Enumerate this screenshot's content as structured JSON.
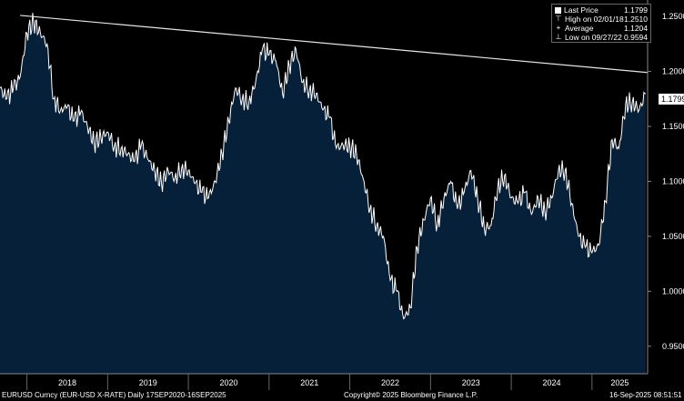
{
  "chart_data": {
    "type": "area",
    "instrument": "EUR-USD X-RATE",
    "footer_left": "EURUSD Curncy (EUR-USD X-RATE)  Daily 17SEP2020-16SEP2025",
    "footer_center": "Copyright© 2025 Bloomberg Finance L.P.",
    "footer_right": "16-Sep-2025 08:51:51",
    "ylim": [
      0.925,
      1.265
    ],
    "y_ticks": [
      "1.2500",
      "1.2000",
      "1.1500",
      "1.1000",
      "1.0500",
      "1.0000",
      "0.9500"
    ],
    "x_labels": [
      "2018",
      "2019",
      "2020",
      "2021",
      "2022",
      "2023",
      "2024",
      "2025"
    ],
    "x": [
      "2017-09",
      "2017-10",
      "2017-11",
      "2017-12",
      "2018-01",
      "2018-02",
      "2018-03",
      "2018-04",
      "2018-05",
      "2018-06",
      "2018-07",
      "2018-08",
      "2018-09",
      "2018-10",
      "2018-11",
      "2018-12",
      "2019-01",
      "2019-02",
      "2019-03",
      "2019-04",
      "2019-05",
      "2019-06",
      "2019-07",
      "2019-08",
      "2019-09",
      "2019-10",
      "2019-11",
      "2019-12",
      "2020-01",
      "2020-02",
      "2020-03",
      "2020-04",
      "2020-05",
      "2020-06",
      "2020-07",
      "2020-08",
      "2020-09",
      "2020-10",
      "2020-11",
      "2020-12",
      "2021-01",
      "2021-02",
      "2021-03",
      "2021-04",
      "2021-05",
      "2021-06",
      "2021-07",
      "2021-08",
      "2021-09",
      "2021-10",
      "2021-11",
      "2021-12",
      "2022-01",
      "2022-02",
      "2022-03",
      "2022-04",
      "2022-05",
      "2022-06",
      "2022-07",
      "2022-08",
      "2022-09",
      "2022-10",
      "2022-11",
      "2022-12",
      "2023-01",
      "2023-02",
      "2023-03",
      "2023-04",
      "2023-05",
      "2023-06",
      "2023-07",
      "2023-08",
      "2023-09",
      "2023-10",
      "2023-11",
      "2023-12",
      "2024-01",
      "2024-02",
      "2024-03",
      "2024-04",
      "2024-05",
      "2024-06",
      "2024-07",
      "2024-08",
      "2024-09",
      "2024-10",
      "2024-11",
      "2024-12",
      "2025-01",
      "2025-02",
      "2025-03",
      "2025-04",
      "2025-05",
      "2025-06",
      "2025-07",
      "2025-08",
      "2025-09"
    ],
    "values": [
      1.185,
      1.175,
      1.185,
      1.195,
      1.235,
      1.245,
      1.235,
      1.225,
      1.175,
      1.165,
      1.168,
      1.155,
      1.163,
      1.15,
      1.135,
      1.14,
      1.145,
      1.132,
      1.13,
      1.125,
      1.118,
      1.133,
      1.12,
      1.11,
      1.098,
      1.11,
      1.103,
      1.112,
      1.11,
      1.098,
      1.09,
      1.085,
      1.1,
      1.125,
      1.155,
      1.185,
      1.175,
      1.172,
      1.19,
      1.22,
      1.215,
      1.21,
      1.18,
      1.205,
      1.22,
      1.19,
      1.183,
      1.18,
      1.165,
      1.158,
      1.13,
      1.133,
      1.132,
      1.125,
      1.102,
      1.075,
      1.06,
      1.05,
      1.01,
      1.0,
      0.975,
      0.985,
      1.04,
      1.065,
      1.085,
      1.06,
      1.085,
      1.1,
      1.075,
      1.09,
      1.11,
      1.085,
      1.057,
      1.06,
      1.095,
      1.105,
      1.085,
      1.08,
      1.09,
      1.07,
      1.085,
      1.072,
      1.085,
      1.11,
      1.11,
      1.08,
      1.05,
      1.04,
      1.035,
      1.042,
      1.082,
      1.138,
      1.13,
      1.17,
      1.172,
      1.165,
      1.1799
    ],
    "trendline": {
      "from": [
        "2017-12",
        1.251
      ],
      "to": [
        "2025-09",
        1.199
      ]
    },
    "legend": [
      {
        "label": "Last Price",
        "value": "1.1799"
      },
      {
        "label": "High on 02/01/18",
        "value": "1.2510"
      },
      {
        "label": "Average",
        "value": "1.1204"
      },
      {
        "label": "Low on 09/27/22",
        "value": "0.9594"
      }
    ],
    "last_price_tag": "1.1799",
    "colors": {
      "background": "#000000",
      "area_fill": "#06203a",
      "line": "#ffffff",
      "trendline": "#e6e6e6"
    },
    "grid": false,
    "legend_position": "top-right"
  }
}
